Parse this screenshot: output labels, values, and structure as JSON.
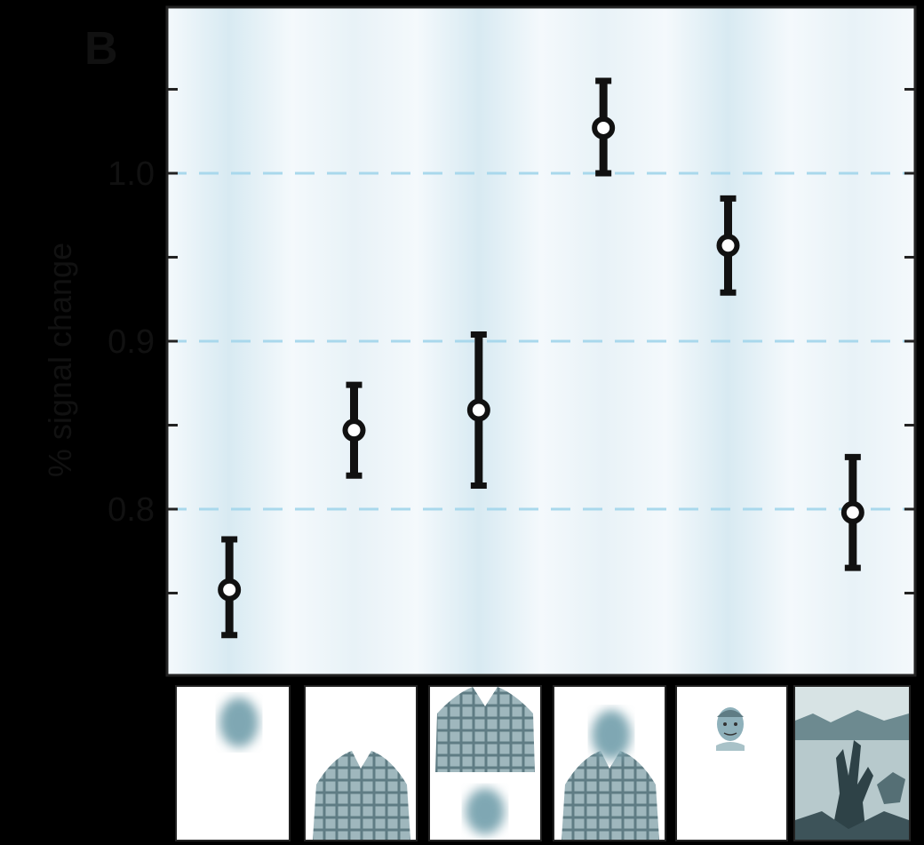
{
  "chart_data": {
    "type": "scatter",
    "panel_label": "B",
    "title": "",
    "xlabel": "",
    "ylabel": "% signal change",
    "ylim": [
      0.7,
      1.08
    ],
    "yticks": [
      0.8,
      0.9,
      1.0
    ],
    "minor_yticks": [
      0.75,
      0.85,
      0.95,
      1.05
    ],
    "grid": "dashed horizontal at major ticks",
    "categories": [
      "blurred face only",
      "body only",
      "body with blurred face below",
      "body with blurred face",
      "face only",
      "scene"
    ],
    "series": [
      {
        "values": [
          0.752,
          0.847,
          0.859,
          1.027,
          0.957,
          0.798
        ],
        "err_low": [
          0.725,
          0.82,
          0.814,
          1.0,
          0.929,
          0.765
        ],
        "err_high": [
          0.782,
          0.874,
          0.904,
          1.055,
          0.985,
          0.831
        ]
      }
    ],
    "colors": {
      "background_tint": "#cfe6f0",
      "grid": "#a9d8ec",
      "marker": "#111111"
    }
  }
}
